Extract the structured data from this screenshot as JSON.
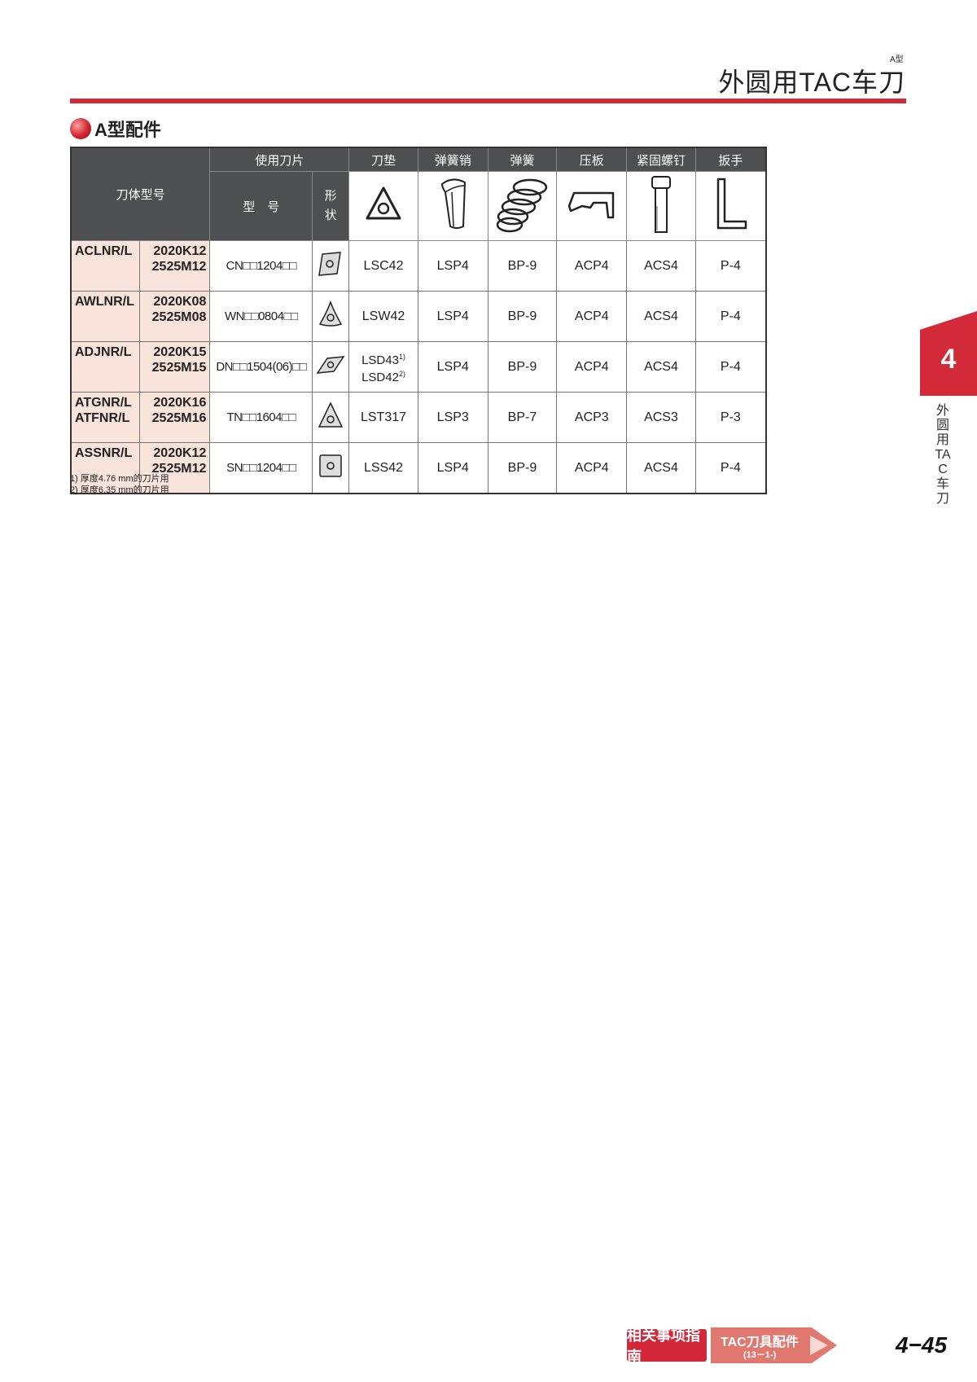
{
  "header": {
    "type_label": "A型",
    "title": "外圆用TAC车刀"
  },
  "section": {
    "title": "A型配件"
  },
  "table": {
    "h_body": "刀体型号",
    "h_insert": "使用刀片",
    "h_model": "型　号",
    "h_shape": "形状",
    "h_parts": [
      "刀垫",
      "弹簧销",
      "弹簧",
      "压板",
      "紧固螺钉",
      "扳手"
    ],
    "rows": [
      {
        "body": "ACLNR/L",
        "sizes": [
          "2020K12",
          "2525M12"
        ],
        "insert": "CN□□1204□□",
        "shape": "rhombus-80",
        "shim": "LSC42",
        "pin": "LSP4",
        "spring": "BP-9",
        "clamp": "ACP4",
        "screw": "ACS4",
        "wrench": "P-4"
      },
      {
        "body": "AWLNR/L",
        "sizes": [
          "2020K08",
          "2525M08"
        ],
        "insert": "WN□□0804□□",
        "shape": "trigon",
        "shim": "LSW42",
        "pin": "LSP4",
        "spring": "BP-9",
        "clamp": "ACP4",
        "screw": "ACS4",
        "wrench": "P-4"
      },
      {
        "body": "ADJNR/L",
        "sizes": [
          "2020K15",
          "2525M15"
        ],
        "insert": "DN□□1504(06)□□",
        "shape": "rhombus-55",
        "shim": "LSD43",
        "shim_note": "1)",
        "shim2": "LSD42",
        "shim2_note": "2)",
        "pin": "LSP4",
        "spring": "BP-9",
        "clamp": "ACP4",
        "screw": "ACS4",
        "wrench": "P-4"
      },
      {
        "body": "ATGNR/L",
        "body2": "ATFNR/L",
        "sizes": [
          "2020K16",
          "2525M16"
        ],
        "insert": "TN□□1604□□",
        "shape": "triangle",
        "shim": "LST317",
        "pin": "LSP3",
        "spring": "BP-7",
        "clamp": "ACP3",
        "screw": "ACS3",
        "wrench": "P-3"
      },
      {
        "body": "ASSNR/L",
        "sizes": [
          "2020K12",
          "2525M12"
        ],
        "insert": "SN□□1204□□",
        "shape": "square",
        "shim": "LSS42",
        "pin": "LSP4",
        "spring": "BP-9",
        "clamp": "ACP4",
        "screw": "ACS4",
        "wrench": "P-4"
      }
    ]
  },
  "notes": [
    "1) 厚度4.76 mm的刀片用",
    "2) 厚度6.35 mm的刀片用"
  ],
  "side_tab": {
    "number": "4",
    "text": "外圆用TAC车刀"
  },
  "footer": {
    "guide": "相关事项指南",
    "link_title": "TAC刀具配件",
    "link_ref": "(13－1-)",
    "page": "4−45"
  },
  "colors": {
    "accent": "#d32a3a",
    "header_bg": "#4d4f51",
    "body_cell_bg": "#f9e4dc"
  }
}
